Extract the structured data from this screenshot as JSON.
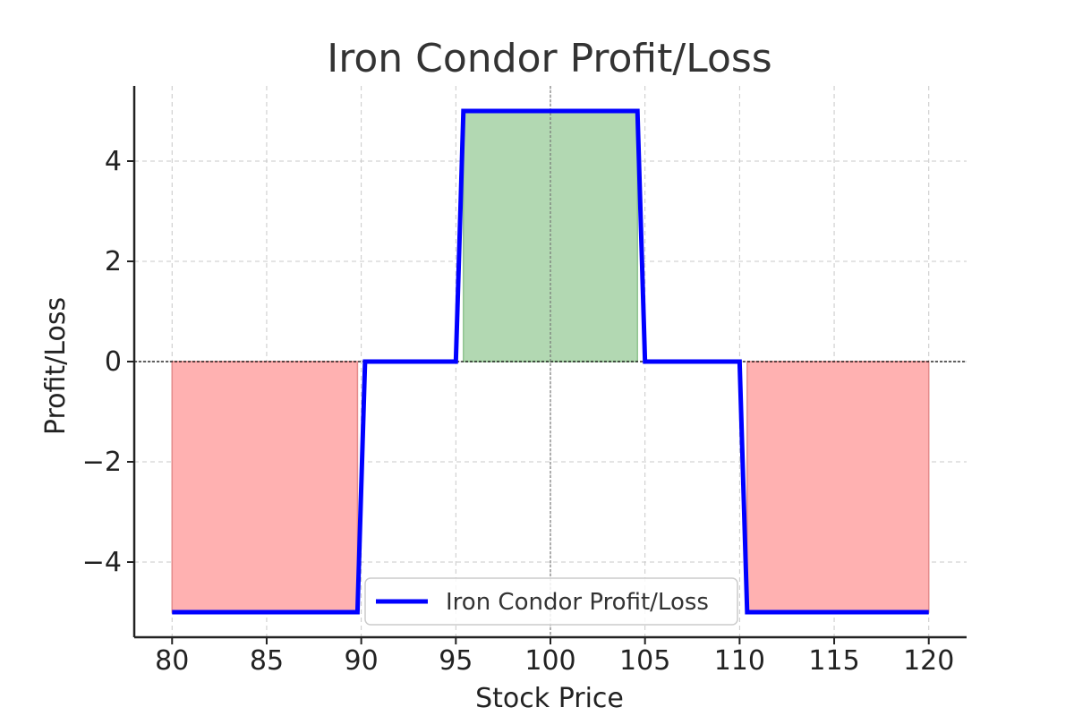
{
  "chart_data": {
    "type": "line",
    "title": "Iron Condor Profit/Loss",
    "xlabel": "Stock Price",
    "ylabel": "Profit/Loss",
    "xlim": [
      78,
      122
    ],
    "ylim": [
      -5.5,
      5.5
    ],
    "xticks": [
      80,
      85,
      90,
      95,
      100,
      105,
      110,
      115,
      120
    ],
    "xtick_labels": [
      "80",
      "85",
      "90",
      "95",
      "100",
      "105",
      "110",
      "115",
      "120"
    ],
    "yticks": [
      -4,
      -2,
      0,
      2,
      4
    ],
    "ytick_labels": [
      "−4",
      "−2",
      "0",
      "2",
      "4"
    ],
    "grid": true,
    "legend_position": "bottom-center",
    "series": [
      {
        "name": "Iron Condor Profit/Loss",
        "color": "#0000ff",
        "x": [
          80,
          89.8,
          90.2,
          95.0,
          95.4,
          104.6,
          105.0,
          110.0,
          110.4,
          120
        ],
        "y": [
          -5,
          -5,
          0,
          0,
          5,
          5,
          0,
          0,
          -5,
          -5
        ]
      }
    ],
    "reference_lines": {
      "horizontal_y": 0,
      "vertical_x": 100
    },
    "fills": {
      "profit_color": "#b2d8b2",
      "loss_color": "#ffb1b1",
      "profit_regions": [
        {
          "x": [
            95.4,
            104.6
          ],
          "y": [
            5,
            5
          ]
        }
      ],
      "loss_regions": [
        {
          "x": [
            80,
            89.8
          ],
          "y": [
            -5,
            -5
          ]
        },
        {
          "x": [
            110.4,
            120
          ],
          "y": [
            -5,
            -5
          ]
        }
      ]
    }
  }
}
